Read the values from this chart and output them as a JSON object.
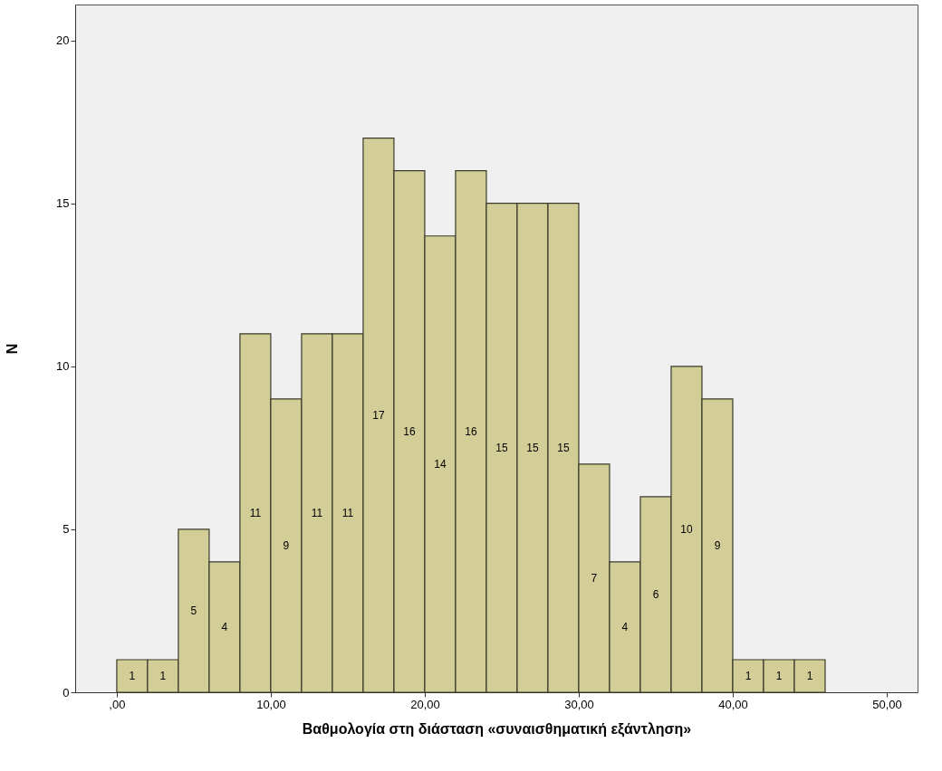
{
  "chart_data": {
    "type": "histogram",
    "xlabel": "Βαθμολογία στη διάσταση «συναισθηματική εξάντληση»",
    "ylabel": "N",
    "bins": [
      0,
      2,
      4,
      6,
      8,
      10,
      12,
      14,
      16,
      18,
      20,
      22,
      24,
      26,
      28,
      30,
      32,
      34,
      36,
      38,
      40,
      42,
      44,
      46
    ],
    "values": [
      1,
      1,
      5,
      4,
      11,
      9,
      11,
      11,
      17,
      16,
      14,
      16,
      15,
      15,
      15,
      7,
      4,
      6,
      10,
      9,
      1,
      1,
      1
    ],
    "color": "#d3ce97",
    "data_labels": true,
    "grid": false,
    "xlim": [
      -2.7,
      52
    ],
    "xticks": [
      {
        "value": 0,
        "label": ",00"
      },
      {
        "value": 10,
        "label": "10,00"
      },
      {
        "value": 20,
        "label": "20,00"
      },
      {
        "value": 30,
        "label": "30,00"
      },
      {
        "value": 40,
        "label": "40,00"
      },
      {
        "value": 50,
        "label": "50,00"
      }
    ],
    "ylim": [
      0,
      21.1
    ],
    "yticks": [
      0,
      5,
      10,
      15,
      20
    ]
  }
}
